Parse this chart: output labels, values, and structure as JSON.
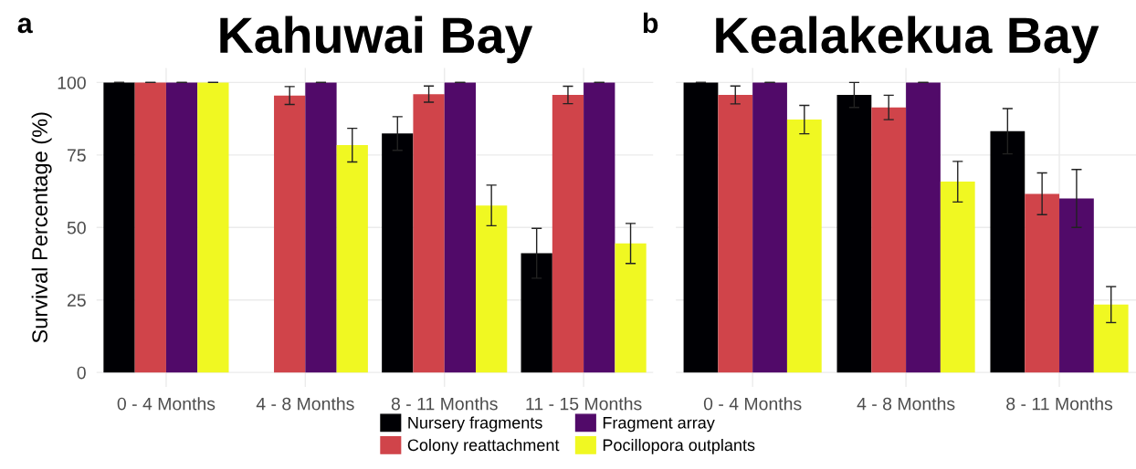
{
  "chart_data": [
    {
      "type": "bar",
      "title": "Kahuwai Bay",
      "ylabel": "Survival Percentage (%)",
      "annotations": [
        "a"
      ],
      "categories": [
        "0 - 4 Months",
        "4 - 8 Months",
        "8 - 11 Months",
        "11 - 15 Months"
      ],
      "ylim": [
        -5,
        105
      ],
      "yticks": [
        0,
        25,
        50,
        75,
        100
      ],
      "grid": true,
      "legend": "bottom",
      "series": [
        {
          "name": "Nursery fragments",
          "color": "#000004",
          "values": [
            100,
            null,
            82.4,
            41.1
          ],
          "errors": [
            0,
            null,
            5.8,
            8.6
          ]
        },
        {
          "name": "Colony reattachment",
          "color": "#d0444a",
          "values": [
            100,
            95.5,
            96,
            95.7
          ],
          "errors": [
            0,
            3.1,
            2.8,
            3
          ]
        },
        {
          "name": "Fragment array",
          "color": "#510a69",
          "values": [
            100,
            100,
            100,
            100
          ],
          "errors": [
            0,
            0,
            0,
            0
          ]
        },
        {
          "name": "Pocillopora outplants",
          "color": "#f0f822",
          "values": [
            100,
            78.4,
            57.6,
            44.5
          ],
          "errors": [
            0,
            5.8,
            7,
            6.9
          ]
        }
      ]
    },
    {
      "type": "bar",
      "title": "Kealakekua Bay",
      "annotations": [
        "b"
      ],
      "categories": [
        "0 - 4 Months",
        "4 - 8 Months",
        "8 - 11 Months"
      ],
      "ylim": [
        -5,
        105
      ],
      "yticks": [
        0,
        25,
        50,
        75,
        100
      ],
      "grid": true,
      "tick_labels": "x",
      "series": [
        {
          "color": "#000004",
          "values": [
            100,
            95.7,
            83.2
          ],
          "errors": [
            0,
            4.3,
            7.8
          ]
        },
        {
          "color": "#d0444a",
          "values": [
            95.7,
            91.4,
            61.6
          ],
          "errors": [
            3.1,
            4.2,
            7.2
          ]
        },
        {
          "color": "#510a69",
          "values": [
            100,
            100,
            60
          ],
          "errors": [
            0,
            0,
            10
          ]
        },
        {
          "color": "#f0f822",
          "values": [
            87.2,
            65.8,
            23.4
          ],
          "errors": [
            4.9,
            7,
            6.2
          ]
        }
      ]
    }
  ]
}
